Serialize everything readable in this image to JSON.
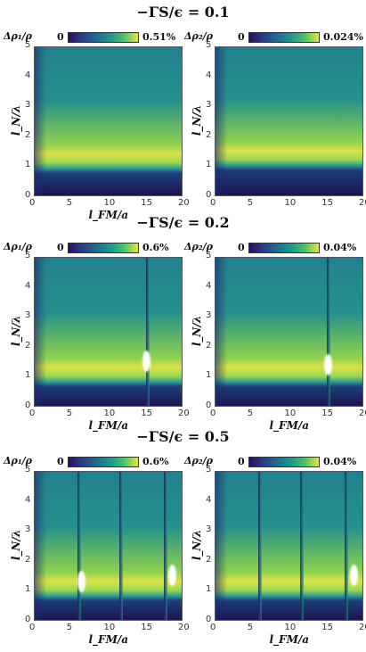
{
  "chart_data": [
    {
      "type": "heatmap",
      "title": "−ΓS/ϵ = 0.1",
      "panels": [
        {
          "colorbar_label": "Δρ₁/ρ",
          "colorbar_min": "0",
          "colorbar_max": "0.51%",
          "xlabel": "l_FM/a",
          "ylabel": "l_N/λ",
          "xlim": [
            0,
            20
          ],
          "ylim": [
            0,
            5
          ],
          "xticks": [
            "0",
            "5",
            "10",
            "15",
            "20"
          ],
          "yticks": [
            "0",
            "1",
            "2",
            "3",
            "4",
            "5"
          ],
          "peak_band_y": 1.4,
          "stripes_x": [],
          "hot_spots": []
        },
        {
          "colorbar_label": "Δρ₂/ρ",
          "colorbar_min": "0",
          "colorbar_max": "0.024%",
          "xlabel": "",
          "ylabel": "l_N/λ",
          "xlim": [
            0,
            20
          ],
          "ylim": [
            0,
            5
          ],
          "xticks": [
            "0",
            "5",
            "10",
            "15",
            "20"
          ],
          "yticks": [
            "0",
            "1",
            "2",
            "3",
            "4",
            "5"
          ],
          "peak_band_y": 1.5,
          "stripes_x": [],
          "hot_spots": []
        }
      ]
    },
    {
      "type": "heatmap",
      "title": "−ΓS/ϵ = 0.2",
      "panels": [
        {
          "colorbar_label": "Δρ₁/ρ",
          "colorbar_min": "0",
          "colorbar_max": "0.6%",
          "xlabel": "l_FM/a",
          "ylabel": "l_N/λ",
          "xlim": [
            0,
            20
          ],
          "ylim": [
            0,
            5
          ],
          "xticks": [
            "0",
            "5",
            "10",
            "15",
            "20"
          ],
          "yticks": [
            "0",
            "1",
            "2",
            "3",
            "4",
            "5"
          ],
          "peak_band_y": 1.3,
          "stripes_x": [
            15.4
          ],
          "hot_spots": [
            {
              "x": 15.2,
              "y": 1.5
            }
          ]
        },
        {
          "colorbar_label": "Δρ₂/ρ",
          "colorbar_min": "0",
          "colorbar_max": "0.04%",
          "xlabel": "l_FM/a",
          "ylabel": "l_N/λ",
          "xlim": [
            0,
            20
          ],
          "ylim": [
            0,
            5
          ],
          "xticks": [
            "0",
            "5",
            "10",
            "15",
            "20"
          ],
          "yticks": [
            "0",
            "1",
            "2",
            "3",
            "4",
            "5"
          ],
          "peak_band_y": 1.3,
          "stripes_x": [
            15.4
          ],
          "hot_spots": [
            {
              "x": 15.3,
              "y": 1.4
            }
          ]
        }
      ]
    },
    {
      "type": "heatmap",
      "title": "−ΓS/ϵ = 0.5",
      "panels": [
        {
          "colorbar_label": "Δρ₁/ρ",
          "colorbar_min": "0",
          "colorbar_max": "0.6%",
          "xlabel": "l_FM/a",
          "ylabel": "l_N/λ",
          "xlim": [
            0,
            20
          ],
          "ylim": [
            0,
            5
          ],
          "xticks": [
            "0",
            "5",
            "10",
            "15",
            "20"
          ],
          "yticks": [
            "0",
            "1",
            "2",
            "3",
            "4",
            "5"
          ],
          "peak_band_y": 1.3,
          "stripes_x": [
            6.1,
            11.8,
            17.8
          ],
          "hot_spots": [
            {
              "x": 6.3,
              "y": 1.3
            },
            {
              "x": 18.7,
              "y": 1.5
            }
          ]
        },
        {
          "colorbar_label": "Δρ₂/ρ",
          "colorbar_min": "0",
          "colorbar_max": "0.04%",
          "xlabel": "l_FM/a",
          "ylabel": "l_N/λ",
          "xlim": [
            0,
            20
          ],
          "ylim": [
            0,
            5
          ],
          "xticks": [
            "0",
            "5",
            "10",
            "15",
            "20"
          ],
          "yticks": [
            "0",
            "1",
            "2",
            "3",
            "4",
            "5"
          ],
          "peak_band_y": 1.3,
          "stripes_x": [
            6.1,
            11.8,
            17.8
          ],
          "hot_spots": [
            {
              "x": 18.8,
              "y": 1.5
            }
          ]
        }
      ]
    }
  ]
}
